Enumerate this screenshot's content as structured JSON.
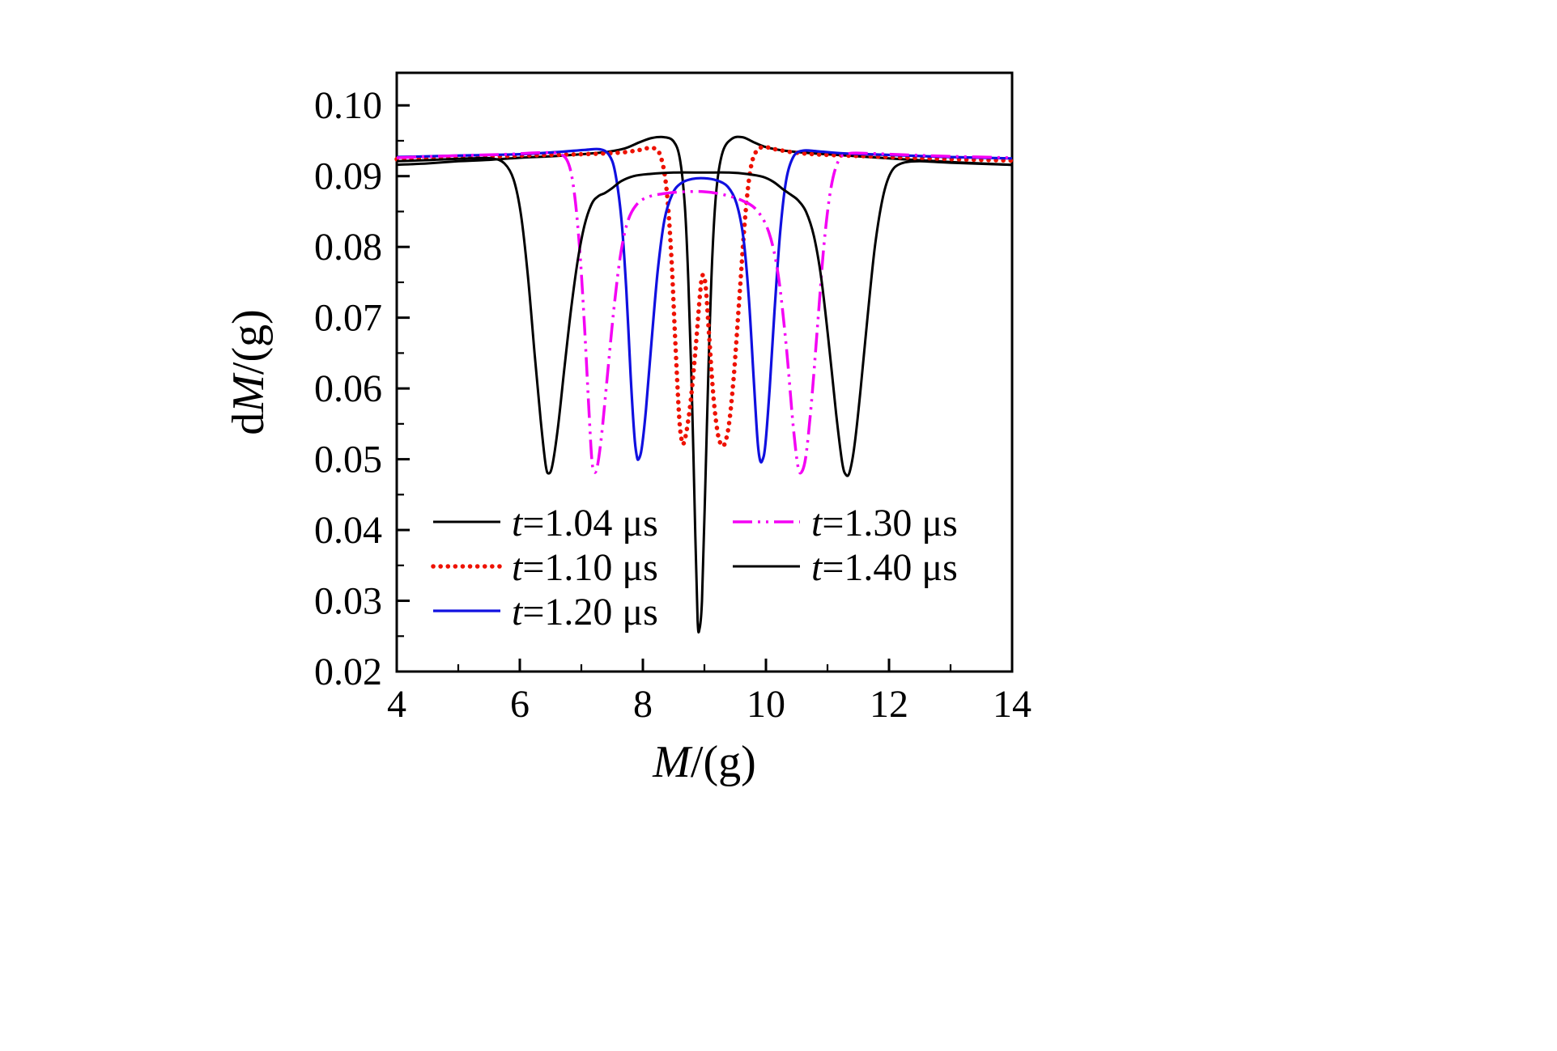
{
  "figure": {
    "background": "#ffffff",
    "frame_color": "#000000"
  },
  "chart_data": {
    "type": "line",
    "title": "",
    "xlabel": {
      "prefix": "",
      "symbol": "M",
      "suffix": "/(g)"
    },
    "ylabel": {
      "prefix": "d",
      "symbol": "M",
      "suffix": "/(g)"
    },
    "xlim": [
      4,
      14
    ],
    "ylim": [
      0.02,
      0.1046
    ],
    "grid": false,
    "frame": true,
    "legend_position": "inside-lower-left-two-columns",
    "x_major_ticks": [
      4,
      6,
      8,
      10,
      12,
      14
    ],
    "x_tick_labels": [
      "4",
      "6",
      "8",
      "10",
      "12",
      "14"
    ],
    "x_minor_ticks": [
      5,
      7,
      9,
      11,
      13
    ],
    "y_major_ticks": [
      0.02,
      0.03,
      0.04,
      0.05,
      0.06,
      0.07,
      0.08,
      0.09,
      0.1
    ],
    "y_tick_labels": [
      "0.02",
      "0.03",
      "0.04",
      "0.05",
      "0.06",
      "0.07",
      "0.08",
      "0.09",
      "0.10"
    ],
    "y_minor_ticks": [
      0.025,
      0.035,
      0.045,
      0.055,
      0.065,
      0.075,
      0.085,
      0.095
    ],
    "series": [
      {
        "name": "t=1.04 us",
        "label": "t=1.04 μs",
        "color": "#000000",
        "style": "solid",
        "width": 3,
        "points": [
          [
            4,
            0.0916
          ],
          [
            4.5,
            0.0918
          ],
          [
            5,
            0.0921
          ],
          [
            5.5,
            0.0923
          ],
          [
            6,
            0.0926
          ],
          [
            6.5,
            0.0928
          ],
          [
            7,
            0.0931
          ],
          [
            7.4,
            0.0934
          ],
          [
            7.7,
            0.0939
          ],
          [
            7.95,
            0.0948
          ],
          [
            8.15,
            0.0954
          ],
          [
            8.35,
            0.0955
          ],
          [
            8.5,
            0.0949
          ],
          [
            8.6,
            0.0925
          ],
          [
            8.68,
            0.086
          ],
          [
            8.74,
            0.075
          ],
          [
            8.8,
            0.058
          ],
          [
            8.85,
            0.04
          ],
          [
            8.89,
            0.0272
          ],
          [
            8.92,
            0.026
          ],
          [
            8.96,
            0.03
          ],
          [
            9.01,
            0.045
          ],
          [
            9.07,
            0.064
          ],
          [
            9.13,
            0.079
          ],
          [
            9.2,
            0.0885
          ],
          [
            9.3,
            0.0935
          ],
          [
            9.45,
            0.0953
          ],
          [
            9.62,
            0.0955
          ],
          [
            9.8,
            0.0948
          ],
          [
            10,
            0.0941
          ],
          [
            10.3,
            0.0936
          ],
          [
            10.8,
            0.0932
          ],
          [
            11.5,
            0.0928
          ],
          [
            12.2,
            0.0924
          ],
          [
            13,
            0.092
          ],
          [
            14,
            0.0916
          ]
        ]
      },
      {
        "name": "t=1.10 us",
        "label": "t=1.10 μs",
        "color": "#ee1100",
        "style": "dotted",
        "width": 5.5,
        "points": [
          [
            4,
            0.0924
          ],
          [
            5,
            0.0926
          ],
          [
            6,
            0.0929
          ],
          [
            7,
            0.0931
          ],
          [
            7.6,
            0.0933
          ],
          [
            7.95,
            0.0937
          ],
          [
            8.15,
            0.094
          ],
          [
            8.28,
            0.093
          ],
          [
            8.38,
            0.0885
          ],
          [
            8.46,
            0.079
          ],
          [
            8.53,
            0.066
          ],
          [
            8.59,
            0.056
          ],
          [
            8.63,
            0.0527
          ],
          [
            8.66,
            0.0522
          ],
          [
            8.71,
            0.054
          ],
          [
            8.78,
            0.0585
          ],
          [
            8.86,
            0.066
          ],
          [
            8.93,
            0.0735
          ],
          [
            8.97,
            0.076
          ],
          [
            9.02,
            0.0745
          ],
          [
            9.08,
            0.067
          ],
          [
            9.15,
            0.0585
          ],
          [
            9.22,
            0.0535
          ],
          [
            9.28,
            0.052
          ],
          [
            9.33,
            0.0522
          ],
          [
            9.4,
            0.055
          ],
          [
            9.48,
            0.062
          ],
          [
            9.57,
            0.073
          ],
          [
            9.66,
            0.084
          ],
          [
            9.75,
            0.091
          ],
          [
            9.85,
            0.0936
          ],
          [
            9.98,
            0.0941
          ],
          [
            10.15,
            0.0938
          ],
          [
            10.5,
            0.0933
          ],
          [
            11,
            0.093
          ],
          [
            12,
            0.0927
          ],
          [
            13,
            0.0924
          ],
          [
            14,
            0.0922
          ]
        ]
      },
      {
        "name": "t=1.20 us",
        "label": "t=1.20 μs",
        "color": "#1010e0",
        "style": "solid",
        "width": 3.2,
        "points": [
          [
            4,
            0.0927
          ],
          [
            5,
            0.0929
          ],
          [
            6,
            0.0931
          ],
          [
            6.6,
            0.0934
          ],
          [
            7.05,
            0.0937
          ],
          [
            7.3,
            0.0938
          ],
          [
            7.45,
            0.093
          ],
          [
            7.55,
            0.0905
          ],
          [
            7.65,
            0.084
          ],
          [
            7.73,
            0.074
          ],
          [
            7.8,
            0.062
          ],
          [
            7.86,
            0.0535
          ],
          [
            7.9,
            0.0505
          ],
          [
            7.93,
            0.05
          ],
          [
            7.98,
            0.0515
          ],
          [
            8.05,
            0.057
          ],
          [
            8.14,
            0.0665
          ],
          [
            8.24,
            0.0765
          ],
          [
            8.35,
            0.0838
          ],
          [
            8.48,
            0.0875
          ],
          [
            8.62,
            0.089
          ],
          [
            8.8,
            0.0896
          ],
          [
            9,
            0.0897
          ],
          [
            9.2,
            0.0894
          ],
          [
            9.38,
            0.0885
          ],
          [
            9.52,
            0.0862
          ],
          [
            9.63,
            0.0815
          ],
          [
            9.72,
            0.073
          ],
          [
            9.8,
            0.0615
          ],
          [
            9.86,
            0.053
          ],
          [
            9.9,
            0.05
          ],
          [
            9.94,
            0.0498
          ],
          [
            9.99,
            0.052
          ],
          [
            10.06,
            0.06
          ],
          [
            10.14,
            0.071
          ],
          [
            10.23,
            0.082
          ],
          [
            10.33,
            0.0895
          ],
          [
            10.45,
            0.0928
          ],
          [
            10.6,
            0.0936
          ],
          [
            10.85,
            0.0935
          ],
          [
            11.3,
            0.0932
          ],
          [
            12,
            0.093
          ],
          [
            13,
            0.0927
          ],
          [
            14,
            0.0925
          ]
        ]
      },
      {
        "name": "t=1.30 us",
        "label": "t=1.30 μs",
        "color": "#f400f4",
        "style": "dashdotdot",
        "width": 3.5,
        "points": [
          [
            4,
            0.0926
          ],
          [
            5,
            0.0929
          ],
          [
            5.8,
            0.0931
          ],
          [
            6.3,
            0.0933
          ],
          [
            6.62,
            0.0932
          ],
          [
            6.78,
            0.092
          ],
          [
            6.88,
            0.088
          ],
          [
            6.97,
            0.08
          ],
          [
            7.05,
            0.069
          ],
          [
            7.12,
            0.0575
          ],
          [
            7.17,
            0.05
          ],
          [
            7.21,
            0.0482
          ],
          [
            7.26,
            0.049
          ],
          [
            7.33,
            0.0535
          ],
          [
            7.42,
            0.0615
          ],
          [
            7.52,
            0.0705
          ],
          [
            7.63,
            0.0785
          ],
          [
            7.75,
            0.0835
          ],
          [
            7.9,
            0.086
          ],
          [
            8.1,
            0.0871
          ],
          [
            8.4,
            0.0876
          ],
          [
            8.7,
            0.0878
          ],
          [
            9,
            0.0878
          ],
          [
            9.3,
            0.0874
          ],
          [
            9.6,
            0.0866
          ],
          [
            9.85,
            0.0852
          ],
          [
            10.05,
            0.082
          ],
          [
            10.2,
            0.076
          ],
          [
            10.33,
            0.066
          ],
          [
            10.44,
            0.055
          ],
          [
            10.52,
            0.049
          ],
          [
            10.58,
            0.0482
          ],
          [
            10.65,
            0.0505
          ],
          [
            10.74,
            0.058
          ],
          [
            10.84,
            0.069
          ],
          [
            10.94,
            0.08
          ],
          [
            11.05,
            0.088
          ],
          [
            11.18,
            0.0922
          ],
          [
            11.35,
            0.0932
          ],
          [
            11.7,
            0.0932
          ],
          [
            12.3,
            0.093
          ],
          [
            13,
            0.0928
          ],
          [
            14,
            0.0926
          ]
        ]
      },
      {
        "name": "t=1.40 us",
        "label": "t=1.40 μs",
        "color": "#000000",
        "style": "solid",
        "width": 3,
        "points": [
          [
            4,
            0.0921
          ],
          [
            4.6,
            0.0923
          ],
          [
            5.2,
            0.0925
          ],
          [
            5.55,
            0.0925
          ],
          [
            5.75,
            0.0918
          ],
          [
            5.9,
            0.0895
          ],
          [
            6.02,
            0.0845
          ],
          [
            6.13,
            0.076
          ],
          [
            6.24,
            0.065
          ],
          [
            6.34,
            0.0555
          ],
          [
            6.42,
            0.0492
          ],
          [
            6.47,
            0.048
          ],
          [
            6.53,
            0.0492
          ],
          [
            6.62,
            0.0545
          ],
          [
            6.72,
            0.0625
          ],
          [
            6.83,
            0.071
          ],
          [
            6.94,
            0.078
          ],
          [
            7.05,
            0.083
          ],
          [
            7.17,
            0.0861
          ],
          [
            7.28,
            0.0872
          ],
          [
            7.38,
            0.0876
          ],
          [
            7.5,
            0.0883
          ],
          [
            7.65,
            0.0893
          ],
          [
            7.85,
            0.09
          ],
          [
            8.1,
            0.0903
          ],
          [
            8.5,
            0.0905
          ],
          [
            9,
            0.0905
          ],
          [
            9.4,
            0.0905
          ],
          [
            9.7,
            0.0903
          ],
          [
            9.95,
            0.0899
          ],
          [
            10.12,
            0.0892
          ],
          [
            10.27,
            0.0882
          ],
          [
            10.4,
            0.0874
          ],
          [
            10.52,
            0.0866
          ],
          [
            10.65,
            0.085
          ],
          [
            10.78,
            0.0815
          ],
          [
            10.9,
            0.0755
          ],
          [
            11.02,
            0.0665
          ],
          [
            11.14,
            0.0565
          ],
          [
            11.24,
            0.0495
          ],
          [
            11.3,
            0.0478
          ],
          [
            11.36,
            0.0482
          ],
          [
            11.44,
            0.052
          ],
          [
            11.54,
            0.06
          ],
          [
            11.65,
            0.07
          ],
          [
            11.77,
            0.08
          ],
          [
            11.9,
            0.087
          ],
          [
            12.03,
            0.0905
          ],
          [
            12.2,
            0.0918
          ],
          [
            12.5,
            0.0921
          ],
          [
            13,
            0.0919
          ],
          [
            14,
            0.0916
          ]
        ]
      }
    ]
  },
  "legend": {
    "columns": [
      [
        0,
        1,
        2
      ],
      [
        3,
        4
      ]
    ]
  }
}
